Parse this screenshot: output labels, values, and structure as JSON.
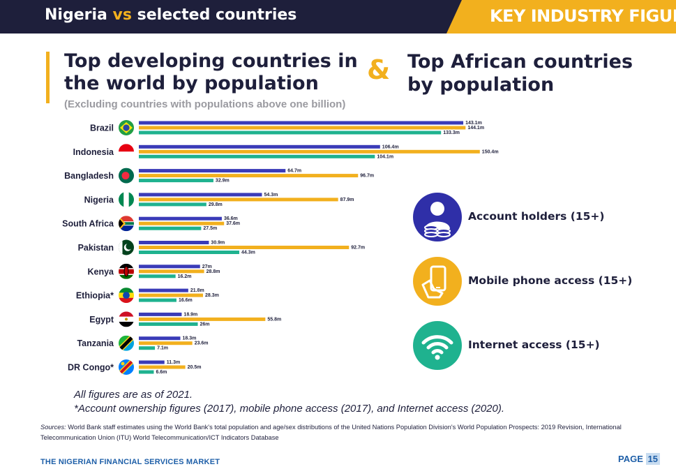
{
  "header": {
    "title_part1": "Nigeria",
    "title_vs": "vs",
    "title_part2": "selected countries",
    "badge": "KEY INDUSTRY FIGURES"
  },
  "headings": {
    "left": "Top developing countries in the world by population",
    "subtitle": "(Excluding countries with populations above one billion)",
    "ampersand": "&",
    "right": "Top African countries by population"
  },
  "colors": {
    "account_holders": "#3a3bb8",
    "mobile_phone": "#f2b01e",
    "internet": "#1fb28f",
    "navy": "#1e1f3b"
  },
  "chart_data": {
    "type": "bar",
    "orientation": "horizontal",
    "grid": false,
    "legend_position": "right",
    "categories": [
      "Brazil",
      "Indonesia",
      "Bangladesh",
      "Nigeria",
      "South Africa",
      "Pakistan",
      "Kenya",
      "Ethiopia*",
      "Egypt",
      "Tanzania",
      "DR Congo*"
    ],
    "flag_icons": [
      "brazil-flag-icon",
      "indonesia-flag-icon",
      "bangladesh-flag-icon",
      "nigeria-flag-icon",
      "south-africa-flag-icon",
      "pakistan-flag-icon",
      "kenya-flag-icon",
      "ethiopia-flag-icon",
      "egypt-flag-icon",
      "tanzania-flag-icon",
      "dr-congo-flag-icon"
    ],
    "unit": "m",
    "xlim": [
      0,
      155
    ],
    "series": [
      {
        "name": "Account holders (15+)",
        "icon": "account-holder-icon",
        "color": "#3a3bb8",
        "values": [
          143.1,
          106.4,
          64.7,
          54.3,
          36.6,
          30.9,
          27,
          21.8,
          18.9,
          18.3,
          11.3
        ],
        "labels": [
          "143.1m",
          "106.4m",
          "64.7m",
          "54.3m",
          "36.6m",
          "30.9m",
          "27m",
          "21.8m",
          "18.9m",
          "18.3m",
          "11.3m"
        ]
      },
      {
        "name": "Mobile phone access (15+)",
        "icon": "mobile-phone-icon",
        "color": "#f2b01e",
        "values": [
          144.1,
          150.4,
          96.7,
          87.9,
          37.6,
          92.7,
          28.8,
          28.3,
          55.8,
          23.6,
          20.5
        ],
        "labels": [
          "144.1m",
          "150.4m",
          "96.7m",
          "87.9m",
          "37.6m",
          "92.7m",
          "28.8m",
          "28.3m",
          "55.8m",
          "23.6m",
          "20.5m"
        ]
      },
      {
        "name": "Internet access (15+)",
        "icon": "wifi-icon",
        "color": "#1fb28f",
        "values": [
          133.3,
          104.1,
          32.9,
          29.8,
          27.5,
          44.3,
          16.2,
          16.6,
          26,
          7.1,
          6.6
        ],
        "labels": [
          "133.3m",
          "104.1m",
          "32.9m",
          "29.8m",
          "27.5m",
          "44.3m",
          "16.2m",
          "16.6m",
          "26m",
          "7.1m",
          "6.6m"
        ]
      }
    ]
  },
  "notes": {
    "line1": "All figures are as of 2021.",
    "line2": "*Account ownership figures (2017), mobile phone access (2017), and Internet access (2020)."
  },
  "sources": {
    "lead": "Sources:",
    "text": " World Bank staff estimates using the World Bank's total population and age/sex distributions of the United Nations Population Division's World Population Prospects: 2019 Revision, International Telecommunication Union (ITU) World Telecommunication/ICT Indicators Database"
  },
  "footer": {
    "left": "THE NIGERIAN FINANCIAL SERVICES MARKET",
    "page_word": "PAGE",
    "page_num": "15"
  }
}
